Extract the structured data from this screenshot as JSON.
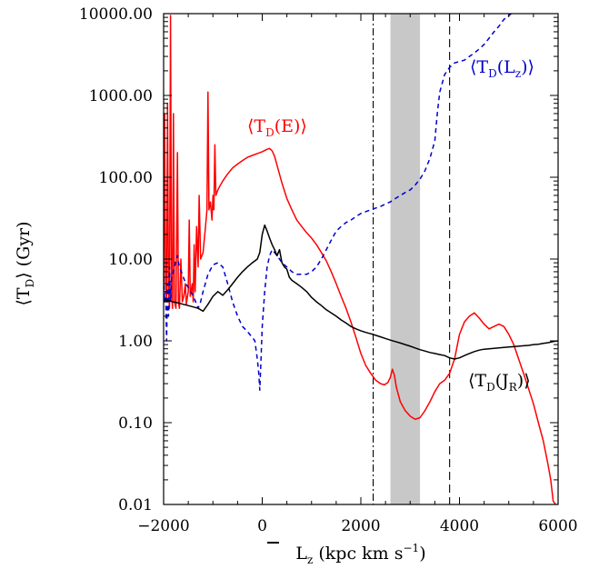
{
  "chart_data": {
    "type": "line",
    "xlabel": "L̄z (kpc km s⁻¹)",
    "ylabel": "⟨TD⟩ (Gyr)",
    "xlim": [
      -2000,
      6000
    ],
    "ylim": [
      0.01,
      10000
    ],
    "yscale": "log",
    "xticks": [
      "-2000",
      "0",
      "2000",
      "4000",
      "6000"
    ],
    "yticks": [
      "0.01",
      "0.10",
      "1.00",
      "10.00",
      "100.00",
      "1000.00",
      "10000.00"
    ],
    "vlines": [
      {
        "x": 2250,
        "style": "dash-dot",
        "color": "#000000"
      },
      {
        "x": 3800,
        "style": "dashed",
        "color": "#000000"
      }
    ],
    "shaded_band": {
      "x": [
        2600,
        3200
      ],
      "color": "#c8c8c8"
    },
    "series": [
      {
        "name": "⟨TD(E)⟩",
        "label_main": "⟨T",
        "label_sub": "D",
        "label_rest": "(E)⟩",
        "color": "#ff0000",
        "style": "solid",
        "points": [
          [
            -2000,
            3.0
          ],
          [
            -1980,
            600
          ],
          [
            -1960,
            5.0
          ],
          [
            -1940,
            3.0
          ],
          [
            -1920,
            800
          ],
          [
            -1900,
            4.0
          ],
          [
            -1880,
            2.5
          ],
          [
            -1860,
            9500
          ],
          [
            -1840,
            4.0
          ],
          [
            -1820,
            2.5
          ],
          [
            -1800,
            600
          ],
          [
            -1780,
            3.0
          ],
          [
            -1750,
            2.5
          ],
          [
            -1720,
            200
          ],
          [
            -1700,
            3.0
          ],
          [
            -1680,
            2.5
          ],
          [
            -1650,
            10
          ],
          [
            -1620,
            3.0
          ],
          [
            -1590,
            3.5
          ],
          [
            -1560,
            5.0
          ],
          [
            -1540,
            2.8
          ],
          [
            -1500,
            4.0
          ],
          [
            -1480,
            30
          ],
          [
            -1460,
            3.5
          ],
          [
            -1420,
            5.0
          ],
          [
            -1400,
            3.0
          ],
          [
            -1380,
            15
          ],
          [
            -1360,
            4.0
          ],
          [
            -1330,
            25
          ],
          [
            -1300,
            8.0
          ],
          [
            -1280,
            60
          ],
          [
            -1250,
            10
          ],
          [
            -1200,
            12
          ],
          [
            -1150,
            25
          ],
          [
            -1120,
            40
          ],
          [
            -1100,
            1100
          ],
          [
            -1080,
            40
          ],
          [
            -1050,
            50
          ],
          [
            -1020,
            30
          ],
          [
            -1000,
            60
          ],
          [
            -980,
            40
          ],
          [
            -960,
            250
          ],
          [
            -940,
            60
          ],
          [
            -900,
            70
          ],
          [
            -850,
            80
          ],
          [
            -800,
            90
          ],
          [
            -700,
            110
          ],
          [
            -600,
            130
          ],
          [
            -500,
            145
          ],
          [
            -400,
            160
          ],
          [
            -300,
            175
          ],
          [
            -200,
            185
          ],
          [
            -100,
            195
          ],
          [
            0,
            205
          ],
          [
            100,
            220
          ],
          [
            150,
            225
          ],
          [
            200,
            210
          ],
          [
            250,
            180
          ],
          [
            300,
            140
          ],
          [
            400,
            85
          ],
          [
            500,
            55
          ],
          [
            600,
            40
          ],
          [
            700,
            30
          ],
          [
            800,
            25
          ],
          [
            900,
            21
          ],
          [
            1000,
            18
          ],
          [
            1100,
            15
          ],
          [
            1200,
            12
          ],
          [
            1300,
            9.5
          ],
          [
            1400,
            7.0
          ],
          [
            1500,
            5.0
          ],
          [
            1600,
            3.5
          ],
          [
            1700,
            2.5
          ],
          [
            1800,
            1.7
          ],
          [
            1900,
            1.1
          ],
          [
            2000,
            0.7
          ],
          [
            2100,
            0.5
          ],
          [
            2200,
            0.4
          ],
          [
            2300,
            0.33
          ],
          [
            2400,
            0.3
          ],
          [
            2480,
            0.29
          ],
          [
            2550,
            0.31
          ],
          [
            2600,
            0.36
          ],
          [
            2640,
            0.45
          ],
          [
            2680,
            0.38
          ],
          [
            2720,
            0.27
          ],
          [
            2800,
            0.18
          ],
          [
            2900,
            0.14
          ],
          [
            3000,
            0.12
          ],
          [
            3100,
            0.11
          ],
          [
            3200,
            0.115
          ],
          [
            3300,
            0.14
          ],
          [
            3400,
            0.18
          ],
          [
            3500,
            0.24
          ],
          [
            3600,
            0.3
          ],
          [
            3700,
            0.33
          ],
          [
            3800,
            0.4
          ],
          [
            3900,
            0.6
          ],
          [
            4000,
            1.2
          ],
          [
            4100,
            1.7
          ],
          [
            4200,
            2.0
          ],
          [
            4300,
            2.2
          ],
          [
            4400,
            1.9
          ],
          [
            4500,
            1.6
          ],
          [
            4600,
            1.4
          ],
          [
            4700,
            1.5
          ],
          [
            4800,
            1.6
          ],
          [
            4900,
            1.5
          ],
          [
            5000,
            1.2
          ],
          [
            5100,
            0.9
          ],
          [
            5200,
            0.6
          ],
          [
            5300,
            0.4
          ],
          [
            5400,
            0.26
          ],
          [
            5500,
            0.17
          ],
          [
            5600,
            0.1
          ],
          [
            5700,
            0.06
          ],
          [
            5800,
            0.03
          ],
          [
            5850,
            0.02
          ],
          [
            5900,
            0.011
          ],
          [
            5950,
            0.01
          ]
        ]
      },
      {
        "name": "⟨TD(Lz)⟩",
        "label_main": "⟨T",
        "label_sub": "D",
        "label_rest": "(L",
        "label_sub2": "z",
        "label_end": ")⟩",
        "color": "#0000cc",
        "style": "dashed",
        "points": [
          [
            -2000,
            6.0
          ],
          [
            -1980,
            3.0
          ],
          [
            -1960,
            4.0
          ],
          [
            -1940,
            1.0
          ],
          [
            -1920,
            5.0
          ],
          [
            -1900,
            2.0
          ],
          [
            -1880,
            8.0
          ],
          [
            -1860,
            3.0
          ],
          [
            -1840,
            6.0
          ],
          [
            -1800,
            7.0
          ],
          [
            -1760,
            9.0
          ],
          [
            -1720,
            11
          ],
          [
            -1680,
            8.0
          ],
          [
            -1640,
            7.0
          ],
          [
            -1600,
            6.0
          ],
          [
            -1550,
            5.0
          ],
          [
            -1500,
            4.5
          ],
          [
            -1450,
            4.0
          ],
          [
            -1400,
            3.5
          ],
          [
            -1350,
            3.0
          ],
          [
            -1300,
            2.5
          ],
          [
            -1250,
            3.0
          ],
          [
            -1200,
            4.0
          ],
          [
            -1100,
            6.5
          ],
          [
            -1000,
            8.5
          ],
          [
            -900,
            9.0
          ],
          [
            -800,
            8.0
          ],
          [
            -700,
            5.0
          ],
          [
            -600,
            3.0
          ],
          [
            -500,
            2.0
          ],
          [
            -400,
            1.5
          ],
          [
            -300,
            1.3
          ],
          [
            -200,
            1.1
          ],
          [
            -150,
            1.0
          ],
          [
            -100,
            0.6
          ],
          [
            -70,
            0.4
          ],
          [
            -50,
            0.25
          ],
          [
            -30,
            0.5
          ],
          [
            0,
            1.5
          ],
          [
            50,
            4.0
          ],
          [
            100,
            8.0
          ],
          [
            150,
            11
          ],
          [
            200,
            13
          ],
          [
            250,
            12
          ],
          [
            300,
            11
          ],
          [
            350,
            10
          ],
          [
            400,
            9.0
          ],
          [
            500,
            8.0
          ],
          [
            600,
            7.0
          ],
          [
            700,
            6.5
          ],
          [
            800,
            6.5
          ],
          [
            900,
            6.5
          ],
          [
            1000,
            7.0
          ],
          [
            1100,
            8.0
          ],
          [
            1200,
            10
          ],
          [
            1300,
            13
          ],
          [
            1400,
            17
          ],
          [
            1500,
            22
          ],
          [
            1600,
            25
          ],
          [
            1700,
            28
          ],
          [
            1800,
            30
          ],
          [
            1900,
            33
          ],
          [
            2000,
            36
          ],
          [
            2100,
            38
          ],
          [
            2200,
            40
          ],
          [
            2300,
            42
          ],
          [
            2400,
            44
          ],
          [
            2500,
            47
          ],
          [
            2600,
            50
          ],
          [
            2700,
            55
          ],
          [
            2800,
            60
          ],
          [
            2900,
            65
          ],
          [
            3000,
            70
          ],
          [
            3100,
            80
          ],
          [
            3200,
            95
          ],
          [
            3300,
            120
          ],
          [
            3400,
            170
          ],
          [
            3500,
            280
          ],
          [
            3550,
            600
          ],
          [
            3600,
            1100
          ],
          [
            3700,
            1800
          ],
          [
            3800,
            2200
          ],
          [
            3900,
            2500
          ],
          [
            4000,
            2600
          ],
          [
            4100,
            2700
          ],
          [
            4200,
            3000
          ],
          [
            4300,
            3300
          ],
          [
            4400,
            3700
          ],
          [
            4500,
            4200
          ],
          [
            4600,
            5000
          ],
          [
            4700,
            6000
          ],
          [
            4800,
            7000
          ],
          [
            4900,
            8500
          ],
          [
            5000,
            9500
          ],
          [
            5050,
            10000
          ],
          [
            5100,
            11000
          ]
        ]
      },
      {
        "name": "⟨TD(JR)⟩",
        "label_main": "⟨T",
        "label_sub": "D",
        "label_rest": "(J",
        "label_sub2": "R",
        "label_end": ")⟩",
        "color": "#000000",
        "style": "solid",
        "points": [
          [
            -2000,
            3.2
          ],
          [
            -1900,
            3.1
          ],
          [
            -1800,
            3.0
          ],
          [
            -1700,
            2.9
          ],
          [
            -1600,
            2.8
          ],
          [
            -1500,
            2.7
          ],
          [
            -1400,
            2.6
          ],
          [
            -1300,
            2.5
          ],
          [
            -1200,
            2.3
          ],
          [
            -1100,
            2.8
          ],
          [
            -1000,
            3.5
          ],
          [
            -900,
            4.0
          ],
          [
            -800,
            3.6
          ],
          [
            -700,
            4.2
          ],
          [
            -600,
            5.0
          ],
          [
            -500,
            6.0
          ],
          [
            -400,
            7.0
          ],
          [
            -300,
            8.0
          ],
          [
            -200,
            9.0
          ],
          [
            -100,
            10
          ],
          [
            -50,
            12
          ],
          [
            0,
            20
          ],
          [
            50,
            26
          ],
          [
            100,
            22
          ],
          [
            150,
            18
          ],
          [
            200,
            15
          ],
          [
            250,
            13
          ],
          [
            300,
            11
          ],
          [
            350,
            13
          ],
          [
            400,
            9.0
          ],
          [
            450,
            8.0
          ],
          [
            500,
            7.5
          ],
          [
            550,
            6.0
          ],
          [
            600,
            5.5
          ],
          [
            700,
            5.0
          ],
          [
            800,
            4.5
          ],
          [
            900,
            4.0
          ],
          [
            1000,
            3.4
          ],
          [
            1100,
            3.0
          ],
          [
            1200,
            2.7
          ],
          [
            1300,
            2.4
          ],
          [
            1400,
            2.2
          ],
          [
            1500,
            2.0
          ],
          [
            1600,
            1.8
          ],
          [
            1700,
            1.65
          ],
          [
            1800,
            1.5
          ],
          [
            1900,
            1.4
          ],
          [
            2000,
            1.33
          ],
          [
            2100,
            1.27
          ],
          [
            2200,
            1.22
          ],
          [
            2300,
            1.17
          ],
          [
            2400,
            1.12
          ],
          [
            2500,
            1.07
          ],
          [
            2600,
            1.02
          ],
          [
            2700,
            0.98
          ],
          [
            2800,
            0.94
          ],
          [
            2900,
            0.9
          ],
          [
            3000,
            0.86
          ],
          [
            3100,
            0.82
          ],
          [
            3200,
            0.78
          ],
          [
            3300,
            0.75
          ],
          [
            3400,
            0.72
          ],
          [
            3500,
            0.7
          ],
          [
            3600,
            0.68
          ],
          [
            3700,
            0.66
          ],
          [
            3800,
            0.62
          ],
          [
            3900,
            0.6
          ],
          [
            4000,
            0.62
          ],
          [
            4100,
            0.66
          ],
          [
            4200,
            0.7
          ],
          [
            4300,
            0.74
          ],
          [
            4400,
            0.77
          ],
          [
            4500,
            0.79
          ],
          [
            4600,
            0.8
          ],
          [
            4700,
            0.81
          ],
          [
            4800,
            0.82
          ],
          [
            4900,
            0.83
          ],
          [
            5000,
            0.84
          ],
          [
            5100,
            0.85
          ],
          [
            5200,
            0.86
          ],
          [
            5300,
            0.87
          ],
          [
            5400,
            0.88
          ],
          [
            5500,
            0.9
          ],
          [
            5600,
            0.91
          ],
          [
            5700,
            0.93
          ],
          [
            5800,
            0.95
          ],
          [
            5900,
            0.98
          ],
          [
            6000,
            1.0
          ]
        ]
      }
    ]
  }
}
